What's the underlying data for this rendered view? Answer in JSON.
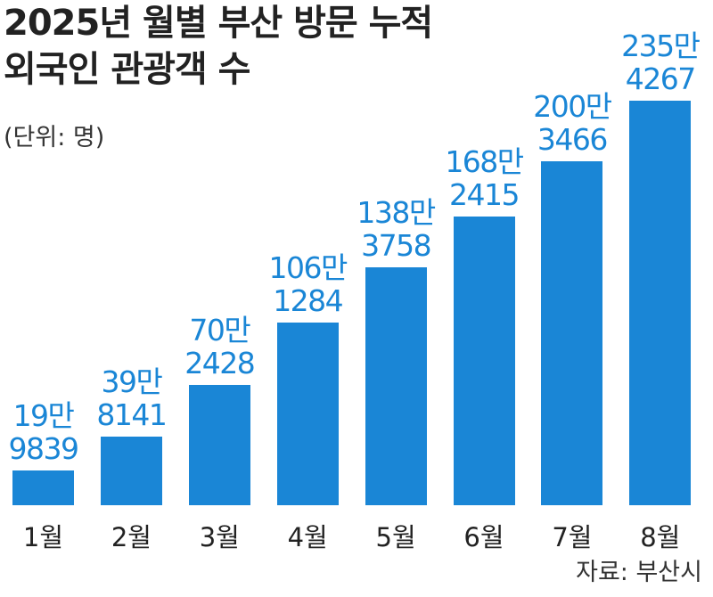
{
  "chart_data": {
    "type": "bar",
    "title": "2025년 월별 부산 방문 누적\n외국인 관광객 수",
    "unit_note": "(단위: 명)",
    "source": "자료: 부산시",
    "categories": [
      "1월",
      "2월",
      "3월",
      "4월",
      "5월",
      "6월",
      "7월",
      "8월"
    ],
    "values": [
      199839,
      398141,
      702428,
      1061284,
      1383758,
      1682415,
      2003466,
      2354267
    ],
    "value_labels": [
      "19만\n9839",
      "39만\n8141",
      "70만\n2428",
      "106만\n1284",
      "138만\n3758",
      "168만\n2415",
      "200만\n3466",
      "235만\n4267"
    ],
    "color": "#1a86d6",
    "ylim": [
      0,
      2500000
    ],
    "grid": false
  }
}
